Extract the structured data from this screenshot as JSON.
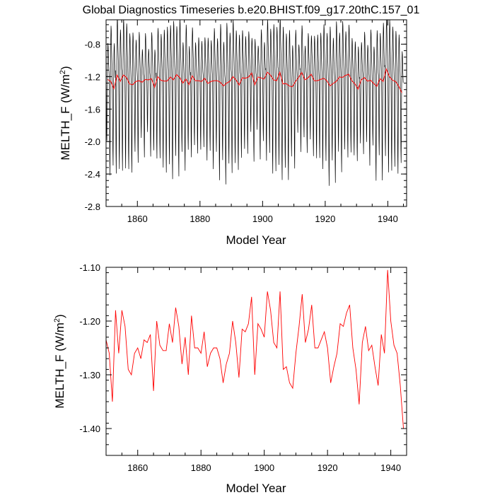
{
  "title": "Global Diagnostics Timeseries b.e20.BHIST.f09_g17.20thC.157_01",
  "colors": {
    "monthly": "#000000",
    "annual": "#ff0000",
    "axes": "#000000"
  },
  "chart_data": [
    {
      "type": "line",
      "xlabel": "Model Year",
      "ylabel_main": "MELTH_F (W/m",
      "ylabel_sup": "2",
      "ylabel_close": ")",
      "xlim": [
        1850,
        1946
      ],
      "ylim": [
        -2.8,
        -0.5
      ],
      "x_ticks": [
        1860,
        1880,
        1900,
        1920,
        1940
      ],
      "y_ticks": [
        -2.8,
        -2.4,
        -2.0,
        -1.6,
        -1.2,
        -0.8
      ],
      "y_tick_labels": [
        "-2.8",
        "-2.4",
        "-2.0",
        "-1.6",
        "-1.2",
        "-0.8"
      ],
      "series": [
        {
          "kind": "monthly",
          "color": "#000000",
          "start_year": 1850,
          "step": 0.08333,
          "seasonal_cycle": [
            -1.25,
            -1.55,
            -2.1,
            -2.3,
            -1.7,
            -1.2,
            -0.85,
            -0.7,
            -0.75,
            -0.95,
            -1.05,
            -1.15
          ]
        },
        {
          "kind": "annual",
          "color": "#ff0000",
          "ref": "annual_means"
        }
      ]
    },
    {
      "type": "line",
      "xlabel": "Model Year",
      "ylabel_main": "MELTH_F (W/m",
      "ylabel_sup": "2",
      "ylabel_close": ")",
      "xlim": [
        1850,
        1945
      ],
      "ylim": [
        -1.45,
        -1.1
      ],
      "x_ticks": [
        1860,
        1880,
        1900,
        1920,
        1940
      ],
      "y_ticks": [
        -1.4,
        -1.3,
        -1.2,
        -1.1
      ],
      "y_tick_labels": [
        "-1.40",
        "-1.30",
        "-1.20",
        "-1.10"
      ],
      "series": [
        {
          "kind": "annual",
          "color": "#ff0000",
          "ref": "annual_means"
        }
      ]
    }
  ],
  "annual_means": {
    "start_year": 1850,
    "values": [
      -1.235,
      -1.26,
      -1.35,
      -1.18,
      -1.26,
      -1.18,
      -1.21,
      -1.29,
      -1.3,
      -1.26,
      -1.25,
      -1.27,
      -1.235,
      -1.24,
      -1.225,
      -1.33,
      -1.2,
      -1.245,
      -1.255,
      -1.255,
      -1.205,
      -1.24,
      -1.175,
      -1.21,
      -1.28,
      -1.23,
      -1.3,
      -1.19,
      -1.25,
      -1.25,
      -1.26,
      -1.22,
      -1.285,
      -1.26,
      -1.25,
      -1.25,
      -1.27,
      -1.315,
      -1.28,
      -1.26,
      -1.2,
      -1.24,
      -1.305,
      -1.215,
      -1.22,
      -1.205,
      -1.155,
      -1.3,
      -1.205,
      -1.215,
      -1.23,
      -1.145,
      -1.18,
      -1.24,
      -1.25,
      -1.145,
      -1.29,
      -1.285,
      -1.315,
      -1.325,
      -1.26,
      -1.21,
      -1.15,
      -1.24,
      -1.215,
      -1.17,
      -1.25,
      -1.25,
      -1.235,
      -1.22,
      -1.25,
      -1.315,
      -1.285,
      -1.26,
      -1.205,
      -1.21,
      -1.185,
      -1.17,
      -1.25,
      -1.29,
      -1.355,
      -1.24,
      -1.21,
      -1.255,
      -1.245,
      -1.285,
      -1.32,
      -1.225,
      -1.26,
      -1.105,
      -1.2,
      -1.245,
      -1.26,
      -1.32,
      -1.4
    ]
  }
}
